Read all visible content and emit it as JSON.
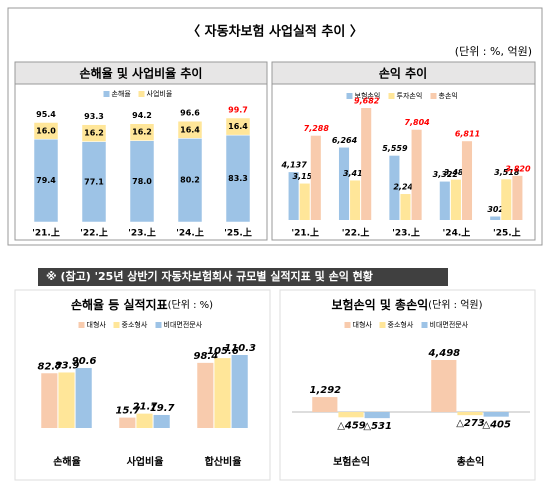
{
  "title": "〈 자동차보험 사업실적 추이 〉",
  "unit": "(단위 : %, 억원)",
  "section_title": "※ (참고) '25년 상반기 자동차보험회사 규모별 실적지표 및 손익 현황",
  "chart_data": [
    {
      "type": "stacked_bar",
      "title": "손해율 및 사업비율 추이",
      "categories": [
        "'21.上",
        "'22.上",
        "'23.上",
        "'24.上",
        "'25.上"
      ],
      "series": [
        {
          "name": "손해율",
          "color": "#9dc3e6",
          "values": [
            79.4,
            77.1,
            78.0,
            80.2,
            83.3
          ],
          "value_labels": [
            "79.4",
            "77.1",
            "78.0",
            "80.2",
            "83.3"
          ]
        },
        {
          "name": "사업비율",
          "color": "#ffe699",
          "values": [
            16.0,
            16.2,
            16.2,
            16.4,
            16.4
          ],
          "value_labels": [
            "16.0",
            "16.2",
            "16.2",
            "16.4",
            "16.4"
          ]
        }
      ],
      "totals": [
        95.4,
        93.3,
        94.2,
        96.6,
        99.7
      ],
      "total_colors": [
        "#000000",
        "#000000",
        "#000000",
        "#000000",
        "#ff0000"
      ]
    },
    {
      "type": "bar",
      "title": "손익 추이",
      "categories": [
        "'21.上",
        "'22.上",
        "'23.上",
        "'24.上",
        "'25.上"
      ],
      "series": [
        {
          "name": "보험손익",
          "color": "#9dc3e6",
          "label_color": "#000000",
          "values": [
            4137,
            6264,
            5559,
            3322,
            302
          ],
          "value_labels": [
            "4,137",
            "6,264",
            "5,559",
            "3,322",
            "302"
          ]
        },
        {
          "name": "투자손익",
          "color": "#ffe699",
          "label_color": "#000000",
          "values": [
            3151,
            3418,
            2245,
            3489,
            3518
          ],
          "value_labels": [
            "3,151",
            "3,418",
            "2,245",
            "3,489",
            "3,518"
          ]
        },
        {
          "name": "총손익",
          "color": "#f8cbad",
          "label_color": "#ff0000",
          "values": [
            7288,
            9682,
            7804,
            6811,
            3820
          ],
          "value_labels": [
            "7,288",
            "9,682",
            "7,804",
            "6,811",
            "3,820"
          ]
        }
      ]
    },
    {
      "type": "bar",
      "title": "손해율 등 실적지표",
      "unit": "(단위 : %)",
      "categories": [
        "손해율",
        "사업비율",
        "합산비율"
      ],
      "series": [
        {
          "name": "대형사",
          "color": "#f8cbad",
          "label_color": "#000000",
          "values": [
            82.7,
            15.7,
            98.4
          ]
        },
        {
          "name": "중소형사",
          "color": "#ffe699",
          "label_color": "#000000",
          "values": [
            83.9,
            21.7,
            105.6
          ]
        },
        {
          "name": "비대면전문사",
          "color": "#9dc3e6",
          "label_color": "#000000",
          "values": [
            90.6,
            19.7,
            110.3
          ]
        }
      ]
    },
    {
      "type": "bar",
      "title": "보험손익 및 총손익",
      "unit": "(단위 : 억원)",
      "categories": [
        "보험손익",
        "총손익"
      ],
      "series": [
        {
          "name": "대형사",
          "color": "#f8cbad",
          "label_color": "#000000",
          "values": [
            1292,
            4498
          ],
          "value_labels": [
            "1,292",
            "4,498"
          ]
        },
        {
          "name": "중소형사",
          "color": "#ffe699",
          "label_color": "#000000",
          "values": [
            -459,
            -273
          ],
          "value_labels": [
            "△459",
            "△273"
          ]
        },
        {
          "name": "비대면전문사",
          "color": "#9dc3e6",
          "label_color": "#000000",
          "values": [
            -531,
            -405
          ],
          "value_labels": [
            "△531",
            "△405"
          ]
        }
      ]
    }
  ]
}
